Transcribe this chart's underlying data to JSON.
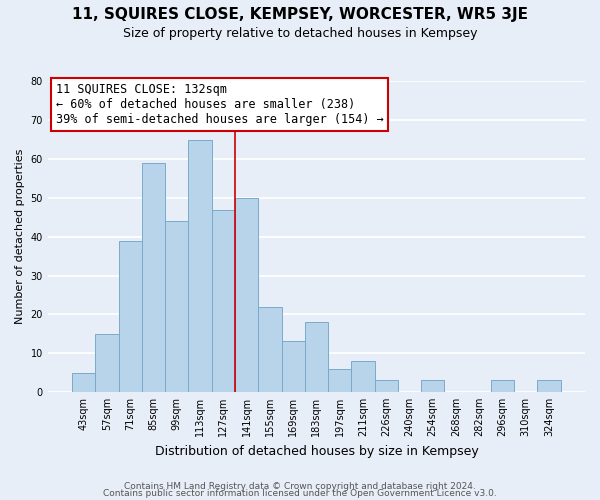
{
  "title": "11, SQUIRES CLOSE, KEMPSEY, WORCESTER, WR5 3JE",
  "subtitle": "Size of property relative to detached houses in Kempsey",
  "xlabel": "Distribution of detached houses by size in Kempsey",
  "ylabel": "Number of detached properties",
  "bin_labels": [
    "43sqm",
    "57sqm",
    "71sqm",
    "85sqm",
    "99sqm",
    "113sqm",
    "127sqm",
    "141sqm",
    "155sqm",
    "169sqm",
    "183sqm",
    "197sqm",
    "211sqm",
    "226sqm",
    "240sqm",
    "254sqm",
    "268sqm",
    "282sqm",
    "296sqm",
    "310sqm",
    "324sqm"
  ],
  "bar_heights": [
    5,
    15,
    39,
    59,
    44,
    65,
    47,
    50,
    22,
    13,
    18,
    6,
    8,
    3,
    0,
    3,
    0,
    0,
    3,
    0,
    3
  ],
  "bar_color": "#b8d4ea",
  "bar_edge_color": "#7aaacb",
  "vline_x": 6.5,
  "vline_color": "#cc0000",
  "annotation_title": "11 SQUIRES CLOSE: 132sqm",
  "annotation_line1": "← 60% of detached houses are smaller (238)",
  "annotation_line2": "39% of semi-detached houses are larger (154) →",
  "annotation_box_color": "#ffffff",
  "annotation_box_edge": "#cc0000",
  "ylim": [
    0,
    80
  ],
  "yticks": [
    0,
    10,
    20,
    30,
    40,
    50,
    60,
    70,
    80
  ],
  "footer1": "Contains HM Land Registry data © Crown copyright and database right 2024.",
  "footer2": "Contains public sector information licensed under the Open Government Licence v3.0.",
  "bg_color": "#e8eef7",
  "title_fontsize": 11,
  "subtitle_fontsize": 9,
  "ylabel_fontsize": 8,
  "xlabel_fontsize": 9,
  "tick_fontsize": 7,
  "annotation_fontsize": 8.5,
  "footer_fontsize": 6.5
}
